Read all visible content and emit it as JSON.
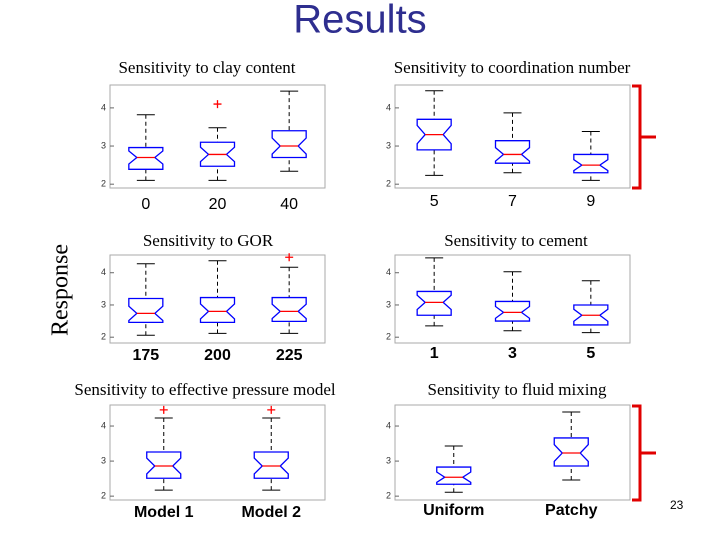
{
  "title": "Results",
  "ylabel": "Response",
  "page_number": "23",
  "chart_data": [
    {
      "type": "box",
      "title": "Sensitivity to clay content",
      "categories": [
        "0",
        "20",
        "40"
      ],
      "boxes": [
        {
          "low": 2.1,
          "q1": 2.39,
          "median": 2.7,
          "q3": 2.96,
          "high": 3.82,
          "outliers": []
        },
        {
          "low": 2.1,
          "q1": 2.47,
          "median": 2.78,
          "q3": 3.1,
          "high": 3.48,
          "outliers": [
            4.1
          ]
        },
        {
          "low": 2.34,
          "q1": 2.7,
          "median": 3.0,
          "q3": 3.4,
          "high": 4.44,
          "outliers": []
        }
      ],
      "box_color": "#0000ff",
      "median_color": "#ff0000",
      "ylim": [
        1.9,
        4.6
      ],
      "yticks": [
        2,
        3,
        4
      ]
    },
    {
      "type": "box",
      "title": "Sensitivity to coordination number",
      "categories": [
        "5",
        "7",
        "9"
      ],
      "boxes": [
        {
          "low": 2.23,
          "q1": 2.9,
          "median": 3.3,
          "q3": 3.7,
          "high": 4.45,
          "outliers": []
        },
        {
          "low": 2.3,
          "q1": 2.55,
          "median": 2.78,
          "q3": 3.14,
          "high": 3.87,
          "outliers": []
        },
        {
          "low": 2.1,
          "q1": 2.3,
          "median": 2.5,
          "q3": 2.78,
          "high": 3.38,
          "outliers": []
        }
      ],
      "box_color": "#0000ff",
      "median_color": "#ff0000",
      "ylim": [
        1.9,
        4.6
      ],
      "yticks": [
        2,
        3,
        4
      ]
    },
    {
      "type": "box",
      "title": "Sensitivity to GOR",
      "categories": [
        "175",
        "200",
        "225"
      ],
      "boxes": [
        {
          "low": 2.06,
          "q1": 2.46,
          "median": 2.74,
          "q3": 3.2,
          "high": 4.28,
          "outliers": []
        },
        {
          "low": 2.12,
          "q1": 2.46,
          "median": 2.8,
          "q3": 3.23,
          "high": 4.37,
          "outliers": []
        },
        {
          "low": 2.12,
          "q1": 2.49,
          "median": 2.8,
          "q3": 3.23,
          "high": 4.17,
          "outliers": [
            4.48
          ]
        }
      ],
      "box_color": "#0000ff",
      "median_color": "#ff0000",
      "ylim": [
        1.82,
        4.55
      ],
      "yticks": [
        2,
        3,
        4
      ]
    },
    {
      "type": "box",
      "title": "Sensitivity to cement",
      "categories": [
        "1",
        "3",
        "5"
      ],
      "boxes": [
        {
          "low": 2.35,
          "q1": 2.68,
          "median": 3.08,
          "q3": 3.42,
          "high": 4.46,
          "outliers": []
        },
        {
          "low": 2.2,
          "q1": 2.5,
          "median": 2.77,
          "q3": 3.11,
          "high": 4.03,
          "outliers": []
        },
        {
          "low": 2.14,
          "q1": 2.38,
          "median": 2.68,
          "q3": 3.0,
          "high": 3.75,
          "outliers": []
        }
      ],
      "box_color": "#0000ff",
      "median_color": "#ff0000",
      "ylim": [
        1.82,
        4.55
      ],
      "yticks": [
        2,
        3,
        4
      ]
    },
    {
      "type": "box",
      "title": "Sensitivity to effective pressure model",
      "categories": [
        "Model 1",
        "Model 2"
      ],
      "boxes": [
        {
          "low": 2.17,
          "q1": 2.51,
          "median": 2.86,
          "q3": 3.26,
          "high": 4.23,
          "outliers": [
            4.46
          ]
        },
        {
          "low": 2.17,
          "q1": 2.51,
          "median": 2.86,
          "q3": 3.26,
          "high": 4.23,
          "outliers": [
            4.46
          ]
        }
      ],
      "box_color": "#0000ff",
      "median_color": "#ff0000",
      "ylim": [
        1.89,
        4.6
      ],
      "yticks": [
        2,
        3,
        4
      ]
    },
    {
      "type": "box",
      "title": "Sensitivity to fluid mixing",
      "categories": [
        "Uniform",
        "Patchy"
      ],
      "boxes": [
        {
          "low": 2.11,
          "q1": 2.34,
          "median": 2.54,
          "q3": 2.83,
          "high": 3.43,
          "outliers": []
        },
        {
          "low": 2.46,
          "q1": 2.86,
          "median": 3.23,
          "q3": 3.66,
          "high": 4.4,
          "outliers": []
        }
      ],
      "box_color": "#0000ff",
      "median_color": "#ff0000",
      "ylim": [
        1.89,
        4.6
      ],
      "yticks": [
        2,
        3,
        4
      ]
    }
  ]
}
